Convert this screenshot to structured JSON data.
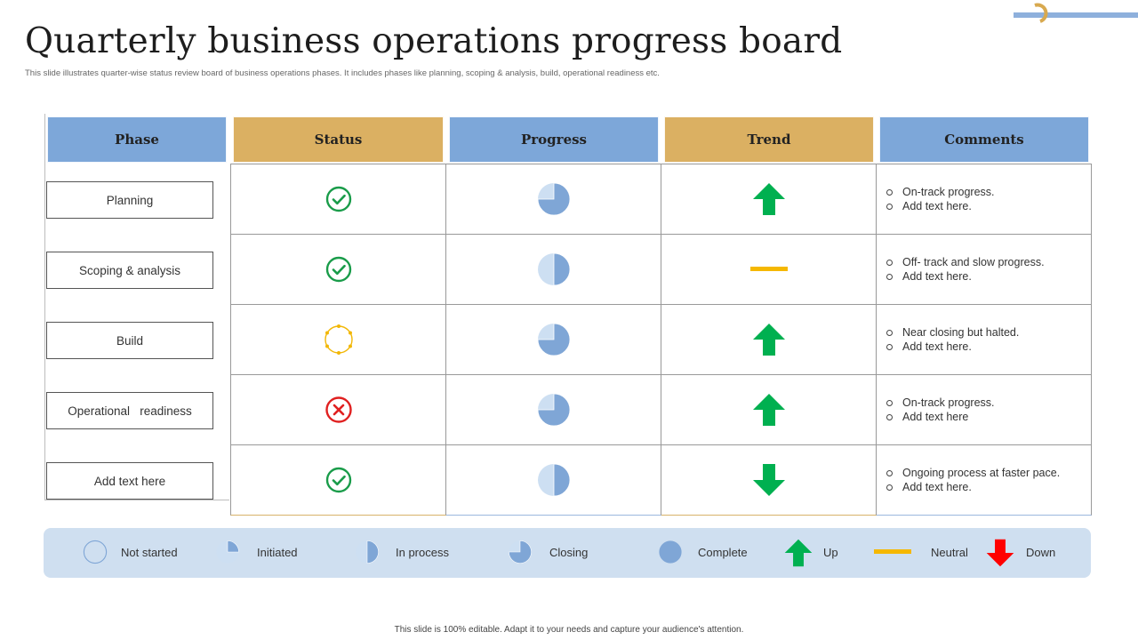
{
  "slide": {
    "title": "Quarterly business operations progress board",
    "subtitle": "This slide illustrates quarter-wise status review board of business operations phases. It includes phases like planning,  scoping & analysis, build, operational readiness etc.",
    "footer": "This slide is 100% editable.  Adapt it to your needs and capture your audience's attention."
  },
  "colors": {
    "header_blue": "#7da7d9",
    "header_gold": "#dbb062",
    "check_green": "#1a9c4a",
    "cross_red": "#e02020",
    "closing_yellow": "#f2b705",
    "arrow_green": "#00b050",
    "arrow_red": "#ff0000",
    "neutral_yellow": "#f5b800",
    "pie_fill": "#7fa6d6",
    "pie_light": "#cddff2",
    "legend_bg": "#cfdff0"
  },
  "table": {
    "headers": {
      "phase": "Phase",
      "status": "Status",
      "progress": "Progress",
      "trend": "Trend",
      "comments": "Comments"
    },
    "rows": [
      {
        "phase": "Planning",
        "status": "complete-check-icon",
        "progress_fraction": 0.75,
        "trend": "up-arrow-icon",
        "comments": [
          "On-track progress.",
          "Add text here."
        ]
      },
      {
        "phase": "Scoping & analysis",
        "status": "complete-check-icon",
        "progress_fraction": 0.5,
        "trend": "neutral-dash-icon",
        "comments": [
          "Off- track and slow progress.",
          "Add text here."
        ]
      },
      {
        "phase": "Build",
        "status": "pending-dotted-circle-icon",
        "progress_fraction": 0.75,
        "trend": "up-arrow-icon",
        "comments": [
          "Near closing but halted.",
          "Add text here."
        ]
      },
      {
        "phase": "Operational   readiness",
        "status": "failed-cross-icon",
        "progress_fraction": 0.75,
        "trend": "up-arrow-icon",
        "comments": [
          "On-track progress.",
          "Add text here"
        ]
      },
      {
        "phase": "Add text here",
        "status": "complete-check-icon",
        "progress_fraction": 0.5,
        "trend": "down-arrow-icon",
        "comments": [
          "Ongoing process at faster pace.",
          "Add text here."
        ]
      }
    ]
  },
  "legend": [
    {
      "label": "Not started",
      "icon": "empty-circle-icon",
      "progress_fraction": 0
    },
    {
      "label": "Initiated",
      "icon": "quarter-pie-icon",
      "progress_fraction": 0.25
    },
    {
      "label": "In process",
      "icon": "half-pie-icon",
      "progress_fraction": 0.5
    },
    {
      "label": "Closing",
      "icon": "three-quarter-pie-icon",
      "progress_fraction": 0.75
    },
    {
      "label": "Complete",
      "icon": "full-circle-icon",
      "progress_fraction": 1
    },
    {
      "label": "Up",
      "icon": "up-arrow-icon"
    },
    {
      "label": "Neutral",
      "icon": "neutral-dash-icon"
    },
    {
      "label": "Down",
      "icon": "down-arrow-icon"
    }
  ]
}
